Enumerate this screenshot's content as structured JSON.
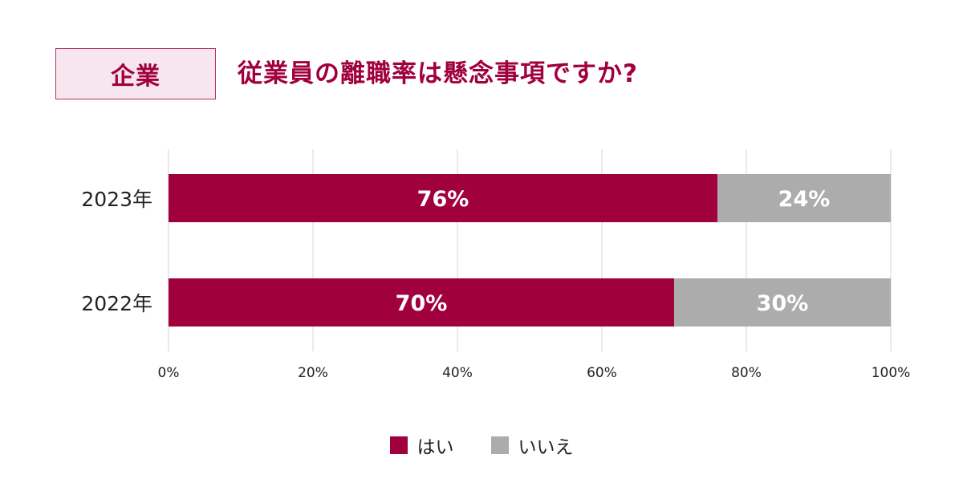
{
  "header": {
    "badge": "企業",
    "title": "従業員の離職率は懸念事項ですか?"
  },
  "colors": {
    "yes": "#a0003e",
    "no": "#acacac",
    "accent": "#a0003e",
    "badge_bg": "#f7e6ee",
    "grid": "#e3e3e3"
  },
  "chart_data": {
    "type": "bar",
    "orientation": "horizontal",
    "stacked": true,
    "categories": [
      "2023年",
      "2022年"
    ],
    "series": [
      {
        "name": "はい",
        "values": [
          76,
          70
        ],
        "labels": [
          "76%",
          "70%"
        ]
      },
      {
        "name": "いいえ",
        "values": [
          24,
          30
        ],
        "labels": [
          "24%",
          "30%"
        ]
      }
    ],
    "xlim": [
      0,
      100
    ],
    "xticks": [
      "0%",
      "20%",
      "40%",
      "60%",
      "80%",
      "100%"
    ],
    "grid": true,
    "legend": "bottom-center"
  }
}
